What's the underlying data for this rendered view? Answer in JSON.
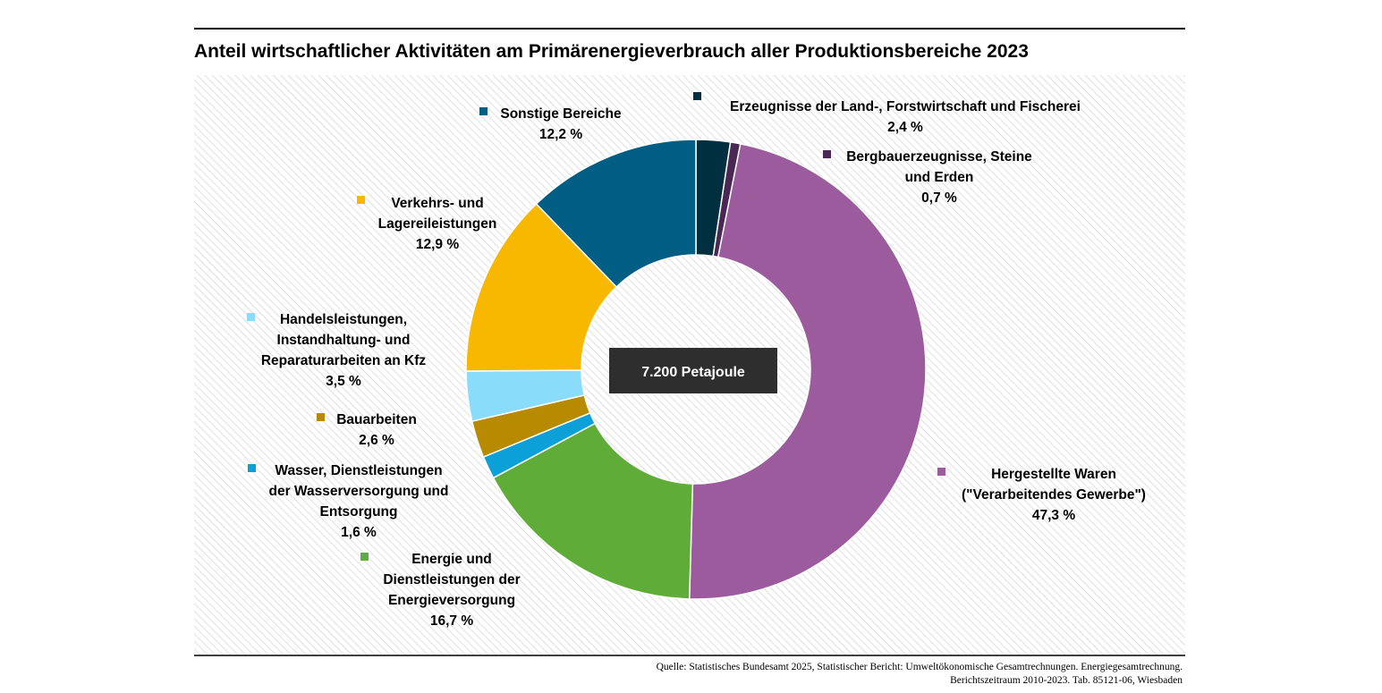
{
  "chart_data": {
    "type": "pie",
    "variant": "donut",
    "title": "Anteil wirtschaftlicher Aktivitäten am Primärenergieverbrauch aller Produktionsbereiche 2023",
    "center_label": "7.200 Petajoule",
    "unit": "%",
    "slices": [
      {
        "name": "Erzeugnisse der Land-, Forstwirtschaft und Fischerei",
        "label_lines": [
          "Erzeugnisse der Land-, Forstwirtschaft und Fischerei"
        ],
        "value": 2.4,
        "value_text": "2,4 %",
        "color": "#00303f"
      },
      {
        "name": "Bergbauerzeugnisse, Steine und Erden",
        "label_lines": [
          "Bergbauerzeugnisse, Steine",
          "und Erden"
        ],
        "value": 0.7,
        "value_text": "0,7 %",
        "color": "#4a2754"
      },
      {
        "name": "Hergestellte Waren (\"Verarbeitendes Gewerbe\")",
        "label_lines": [
          "Hergestellte Waren",
          "(\"Verarbeitendes Gewerbe\")"
        ],
        "value": 47.3,
        "value_text": "47,3 %",
        "color": "#9c5b9c"
      },
      {
        "name": "Energie und Dienstleistungen der Energieversorgung",
        "label_lines": [
          "Energie und",
          "Dienstleistungen der",
          "Energieversorgung"
        ],
        "value": 16.7,
        "value_text": "16,7 %",
        "color": "#5fad38"
      },
      {
        "name": "Wasser, Dienstleistungen der Wasserversorgung und Entsorgung",
        "label_lines": [
          "Wasser, Dienstleistungen",
          "der Wasserversorgung und",
          "Entsorgung"
        ],
        "value": 1.6,
        "value_text": "1,6 %",
        "color": "#0ca0d9"
      },
      {
        "name": "Bauarbeiten",
        "label_lines": [
          "Bauarbeiten"
        ],
        "value": 2.6,
        "value_text": "2,6 %",
        "color": "#b88a00"
      },
      {
        "name": "Handelsleistungen, Instandhaltung- und Reparaturarbeiten an Kfz",
        "label_lines": [
          "Handelsleistungen,",
          "Instandhaltung- und",
          "Reparaturarbeiten an Kfz"
        ],
        "value": 3.5,
        "value_text": "3,5 %",
        "color": "#8adcfb"
      },
      {
        "name": "Verkehrs- und Lagereileistungen",
        "label_lines": [
          "Verkehrs- und",
          "Lagereileistungen"
        ],
        "value": 12.9,
        "value_text": "12,9 %",
        "color": "#f8b800"
      },
      {
        "name": "Sonstige Bereiche",
        "label_lines": [
          "Sonstige Bereiche"
        ],
        "value": 12.2,
        "value_text": "12,2 %",
        "color": "#005e85"
      }
    ],
    "legend": "labels placed around the ring"
  },
  "source": {
    "line1": "Quelle: Statistisches Bundesamt 2025, Statistischer Bericht: Umweltökonomische Gesamtrechnungen. Energiegesamtrechnung.",
    "line2": "Berichtszeitraum 2010-2023. Tab. 85121-06, Wiesbaden"
  }
}
